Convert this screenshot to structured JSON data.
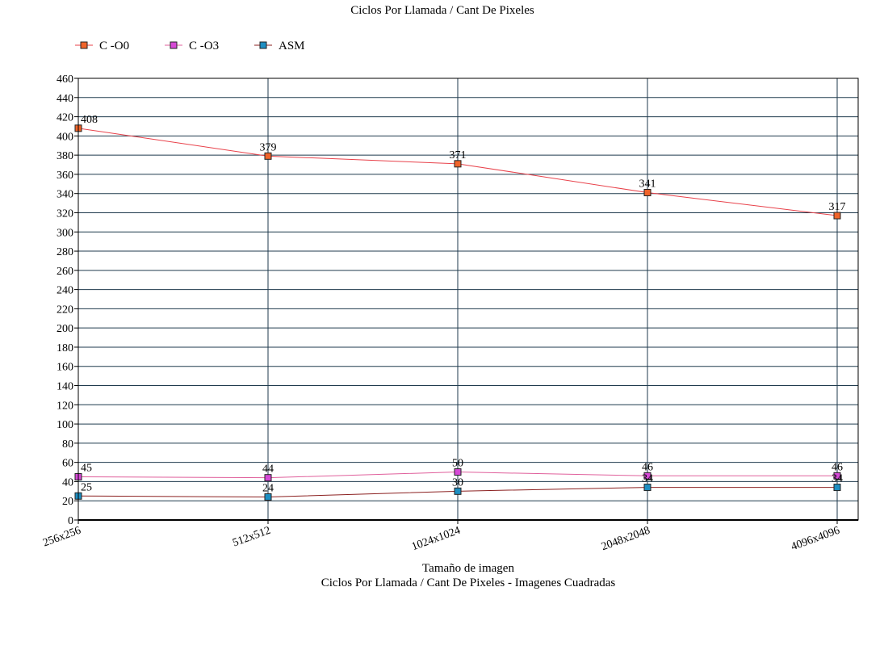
{
  "chart_data": {
    "type": "line",
    "title": "Ciclos Por Llamada / Cant De Pixeles",
    "xlabel": "Tamaño de imagen",
    "subtitle": "Ciclos Por Llamada / Cant De Pixeles - Imagenes Cuadradas",
    "ylabel": "",
    "categories": [
      "256x256",
      "512x512",
      "1024x1024",
      "2048x2048",
      "4096x4096"
    ],
    "ylim": [
      0,
      460
    ],
    "ytick_step": 20,
    "grid": true,
    "legend_position": "top-left",
    "series": [
      {
        "name": "C -O0",
        "values": [
          408,
          379,
          371,
          341,
          317
        ],
        "line_color": "#e8414a",
        "marker_color": "#f0642a",
        "labels": [
          "408",
          "379",
          "371",
          "341",
          "317"
        ]
      },
      {
        "name": "C -O3",
        "values": [
          45,
          44,
          50,
          46,
          46
        ],
        "line_color": "#e0609c",
        "marker_color": "#d649d6",
        "labels": [
          "45",
          "44",
          "50",
          "46",
          "46"
        ]
      },
      {
        "name": "ASM",
        "values": [
          25,
          24,
          30,
          34,
          34
        ],
        "line_color": "#8b2020",
        "marker_color": "#1e8fc2",
        "labels": [
          "25",
          "24",
          "30",
          "34",
          "34"
        ]
      }
    ]
  }
}
